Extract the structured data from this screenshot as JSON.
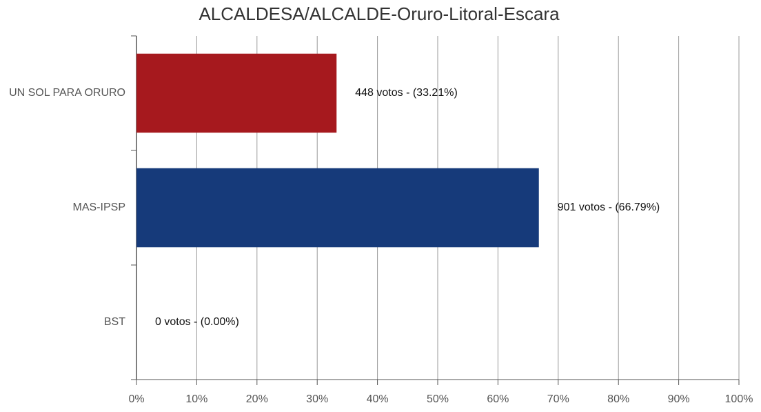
{
  "chart_data": {
    "type": "hbar",
    "title": "ALCALDESA/ALCALDE-Oruro-Litoral-Escara",
    "categories": [
      "UN SOL PARA ORURO",
      "MAS-IPSP",
      "BST"
    ],
    "values": [
      33.21,
      66.79,
      0
    ],
    "value_labels": [
      "448 votos - (33.21%)",
      "901 votos - (66.79%)",
      "0 votos - (0.00%)"
    ],
    "colors": [
      "#a6191e",
      "#163a7a",
      "#4a7a2a"
    ],
    "xlim": [
      0,
      100
    ],
    "xticks": [
      {
        "value": 0,
        "label": "0%"
      },
      {
        "value": 10,
        "label": "10%"
      },
      {
        "value": 20,
        "label": "20%"
      },
      {
        "value": 30,
        "label": "30%"
      },
      {
        "value": 40,
        "label": "40%"
      },
      {
        "value": 50,
        "label": "50%"
      },
      {
        "value": 60,
        "label": "60%"
      },
      {
        "value": 70,
        "label": "70%"
      },
      {
        "value": 80,
        "label": "80%"
      },
      {
        "value": 90,
        "label": "90%"
      },
      {
        "value": 100,
        "label": "100%"
      }
    ],
    "grid": true
  }
}
